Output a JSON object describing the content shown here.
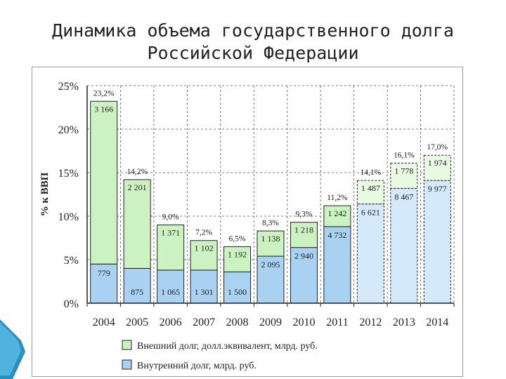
{
  "slide": {
    "title_line1": "Динамика объема государственного долга",
    "title_line2": "Российской Федерации"
  },
  "colors": {
    "external": "#ccf2c2",
    "internal": "#a9d2f2",
    "external_forecast": "#e9fae3",
    "internal_forecast": "#d4e9fa",
    "accent": "#2a8fc0"
  },
  "chart_data": {
    "type": "bar",
    "stacked": true,
    "ylabel": "% к ВВП",
    "ylim": [
      0,
      25
    ],
    "yticks": [
      "0%",
      "5%",
      "10%",
      "15%",
      "20%",
      "25%"
    ],
    "categories": [
      "2004",
      "2005",
      "2006",
      "2007",
      "2008",
      "2009",
      "2010",
      "2011",
      "2012",
      "2013",
      "2014"
    ],
    "totals_pct": [
      23.2,
      14.2,
      9.0,
      7.2,
      6.5,
      8.3,
      9.3,
      11.2,
      14.1,
      16.1,
      17.0
    ],
    "total_labels": [
      "23,2%",
      "14,2%",
      "9,0%",
      "7,2%",
      "6,5%",
      "8,3%",
      "9,3%",
      "11,2%",
      "14,1%",
      "16,1%",
      "17,0%"
    ],
    "forecast_from_index": 8,
    "grid": true,
    "legend_position": "bottom",
    "series": [
      {
        "name": "Внутренний долг, млрд. руб.",
        "key": "internal",
        "pct": [
          4.5,
          4.0,
          3.8,
          3.8,
          3.6,
          5.4,
          6.4,
          8.8,
          11.4,
          13.2,
          14.1
        ],
        "labels": [
          "779",
          "875",
          "1 065",
          "1 301",
          "1 500",
          "2 095",
          "2 940",
          "4 732",
          "6 621",
          "8 467",
          "9 977"
        ]
      },
      {
        "name": "Внешний долг, долл.эквивалент, млрд. руб.",
        "key": "external",
        "pct": [
          18.7,
          10.2,
          5.2,
          3.4,
          2.9,
          2.9,
          2.9,
          2.4,
          2.7,
          2.9,
          2.9
        ],
        "labels": [
          "3 166",
          "2 201",
          "1 371",
          "1 102",
          "1 192",
          "1 138",
          "1 218",
          "1 242",
          "1 487",
          "1 778",
          "1 974"
        ]
      }
    ],
    "legend": [
      {
        "label": "Внешний долг, долл.эквивалент, млрд. руб.",
        "color": "#ccf2c2"
      },
      {
        "label": "Внутренний долг, млрд. руб.",
        "color": "#a9d2f2"
      }
    ]
  }
}
